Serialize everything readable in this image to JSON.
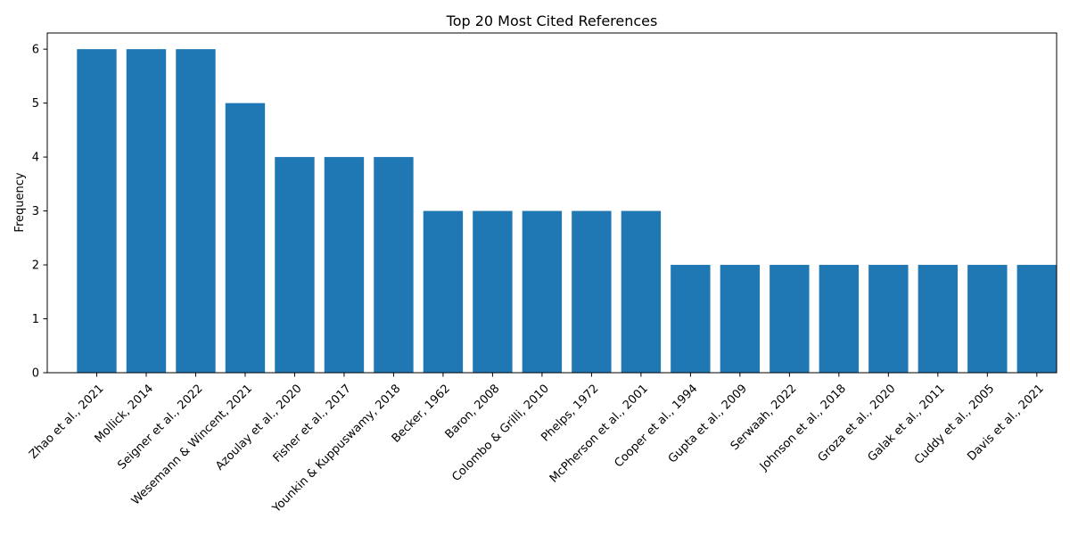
{
  "chart_data": {
    "type": "bar",
    "title": "Top 20 Most Cited References",
    "xlabel": "",
    "ylabel": "Frequency",
    "ylim": [
      0,
      6.3
    ],
    "yticks": [
      0,
      1,
      2,
      3,
      4,
      5,
      6
    ],
    "grid": false,
    "legend": "none",
    "bar_color": "#1f77b4",
    "categories": [
      "Zhao et al., 2021",
      "Mollick, 2014",
      "Seigner et al., 2022",
      "Wesemann & Wincent, 2021",
      "Azoulay et al., 2020",
      "Fisher et al., 2017",
      "Younkin & Kuppuswamy, 2018",
      "Becker, 1962",
      "Baron, 2008",
      "Colombo & Grilli, 2010",
      "Phelps, 1972",
      "McPherson et al., 2001",
      "Cooper et al., 1994",
      "Gupta et al., 2009",
      "Serwaah, 2022",
      "Johnson et al., 2018",
      "Groza et al., 2020",
      "Galak et al., 2011",
      "Cuddy et al., 2005",
      "Davis et al., 2021"
    ],
    "values": [
      6,
      6,
      6,
      5,
      4,
      4,
      4,
      3,
      3,
      3,
      3,
      3,
      2,
      2,
      2,
      2,
      2,
      2,
      2,
      2
    ]
  }
}
